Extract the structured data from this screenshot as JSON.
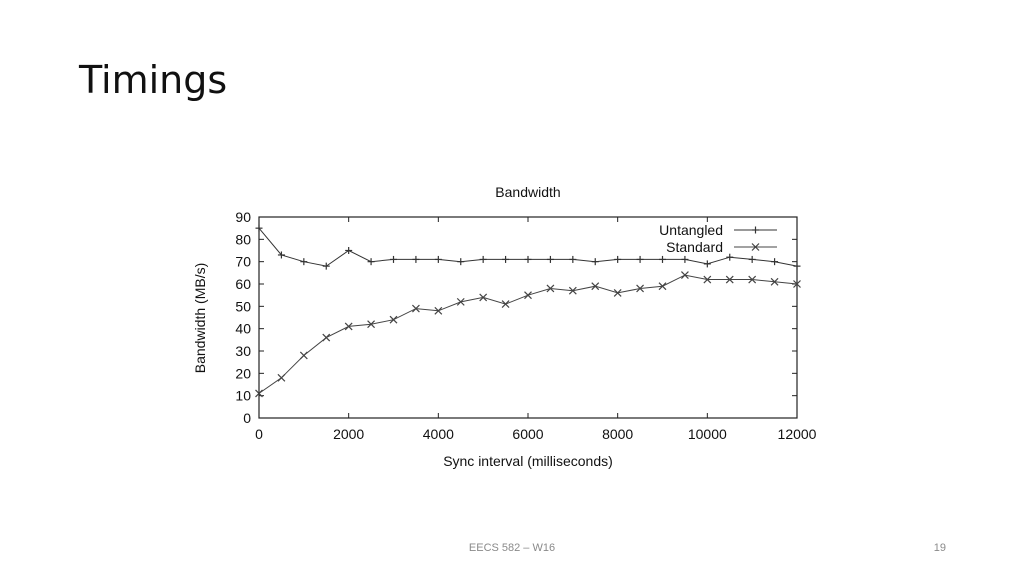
{
  "slide": {
    "title": "Timings",
    "footer": "EECS 582 – W16",
    "page_number": "19"
  },
  "chart_data": {
    "type": "line",
    "title": "Bandwidth",
    "xlabel": "Sync interval (milliseconds)",
    "ylabel": "Bandwidth (MB/s)",
    "xlim": [
      0,
      12000
    ],
    "ylim": [
      0,
      90
    ],
    "xticks": [
      0,
      2000,
      4000,
      6000,
      8000,
      10000,
      12000
    ],
    "yticks": [
      0,
      10,
      20,
      30,
      40,
      50,
      60,
      70,
      80,
      90
    ],
    "grid": false,
    "legend_position": "top-right",
    "x": [
      0,
      500,
      1000,
      1500,
      2000,
      2500,
      3000,
      3500,
      4000,
      4500,
      5000,
      5500,
      6000,
      6500,
      7000,
      7500,
      8000,
      8500,
      9000,
      9500,
      10000,
      10500,
      11000,
      11500,
      12000
    ],
    "series": [
      {
        "name": "Untangled",
        "marker": "plus",
        "color": "#333333",
        "values": [
          85,
          73,
          70,
          68,
          75,
          70,
          71,
          71,
          71,
          70,
          71,
          71,
          71,
          71,
          71,
          70,
          71,
          71,
          71,
          71,
          69,
          72,
          71,
          70,
          68
        ]
      },
      {
        "name": "Standard",
        "marker": "x",
        "color": "#444444",
        "values": [
          11,
          18,
          28,
          36,
          41,
          42,
          44,
          49,
          48,
          52,
          54,
          51,
          55,
          58,
          57,
          59,
          56,
          58,
          59,
          64,
          62,
          62,
          62,
          61,
          60
        ]
      }
    ]
  }
}
